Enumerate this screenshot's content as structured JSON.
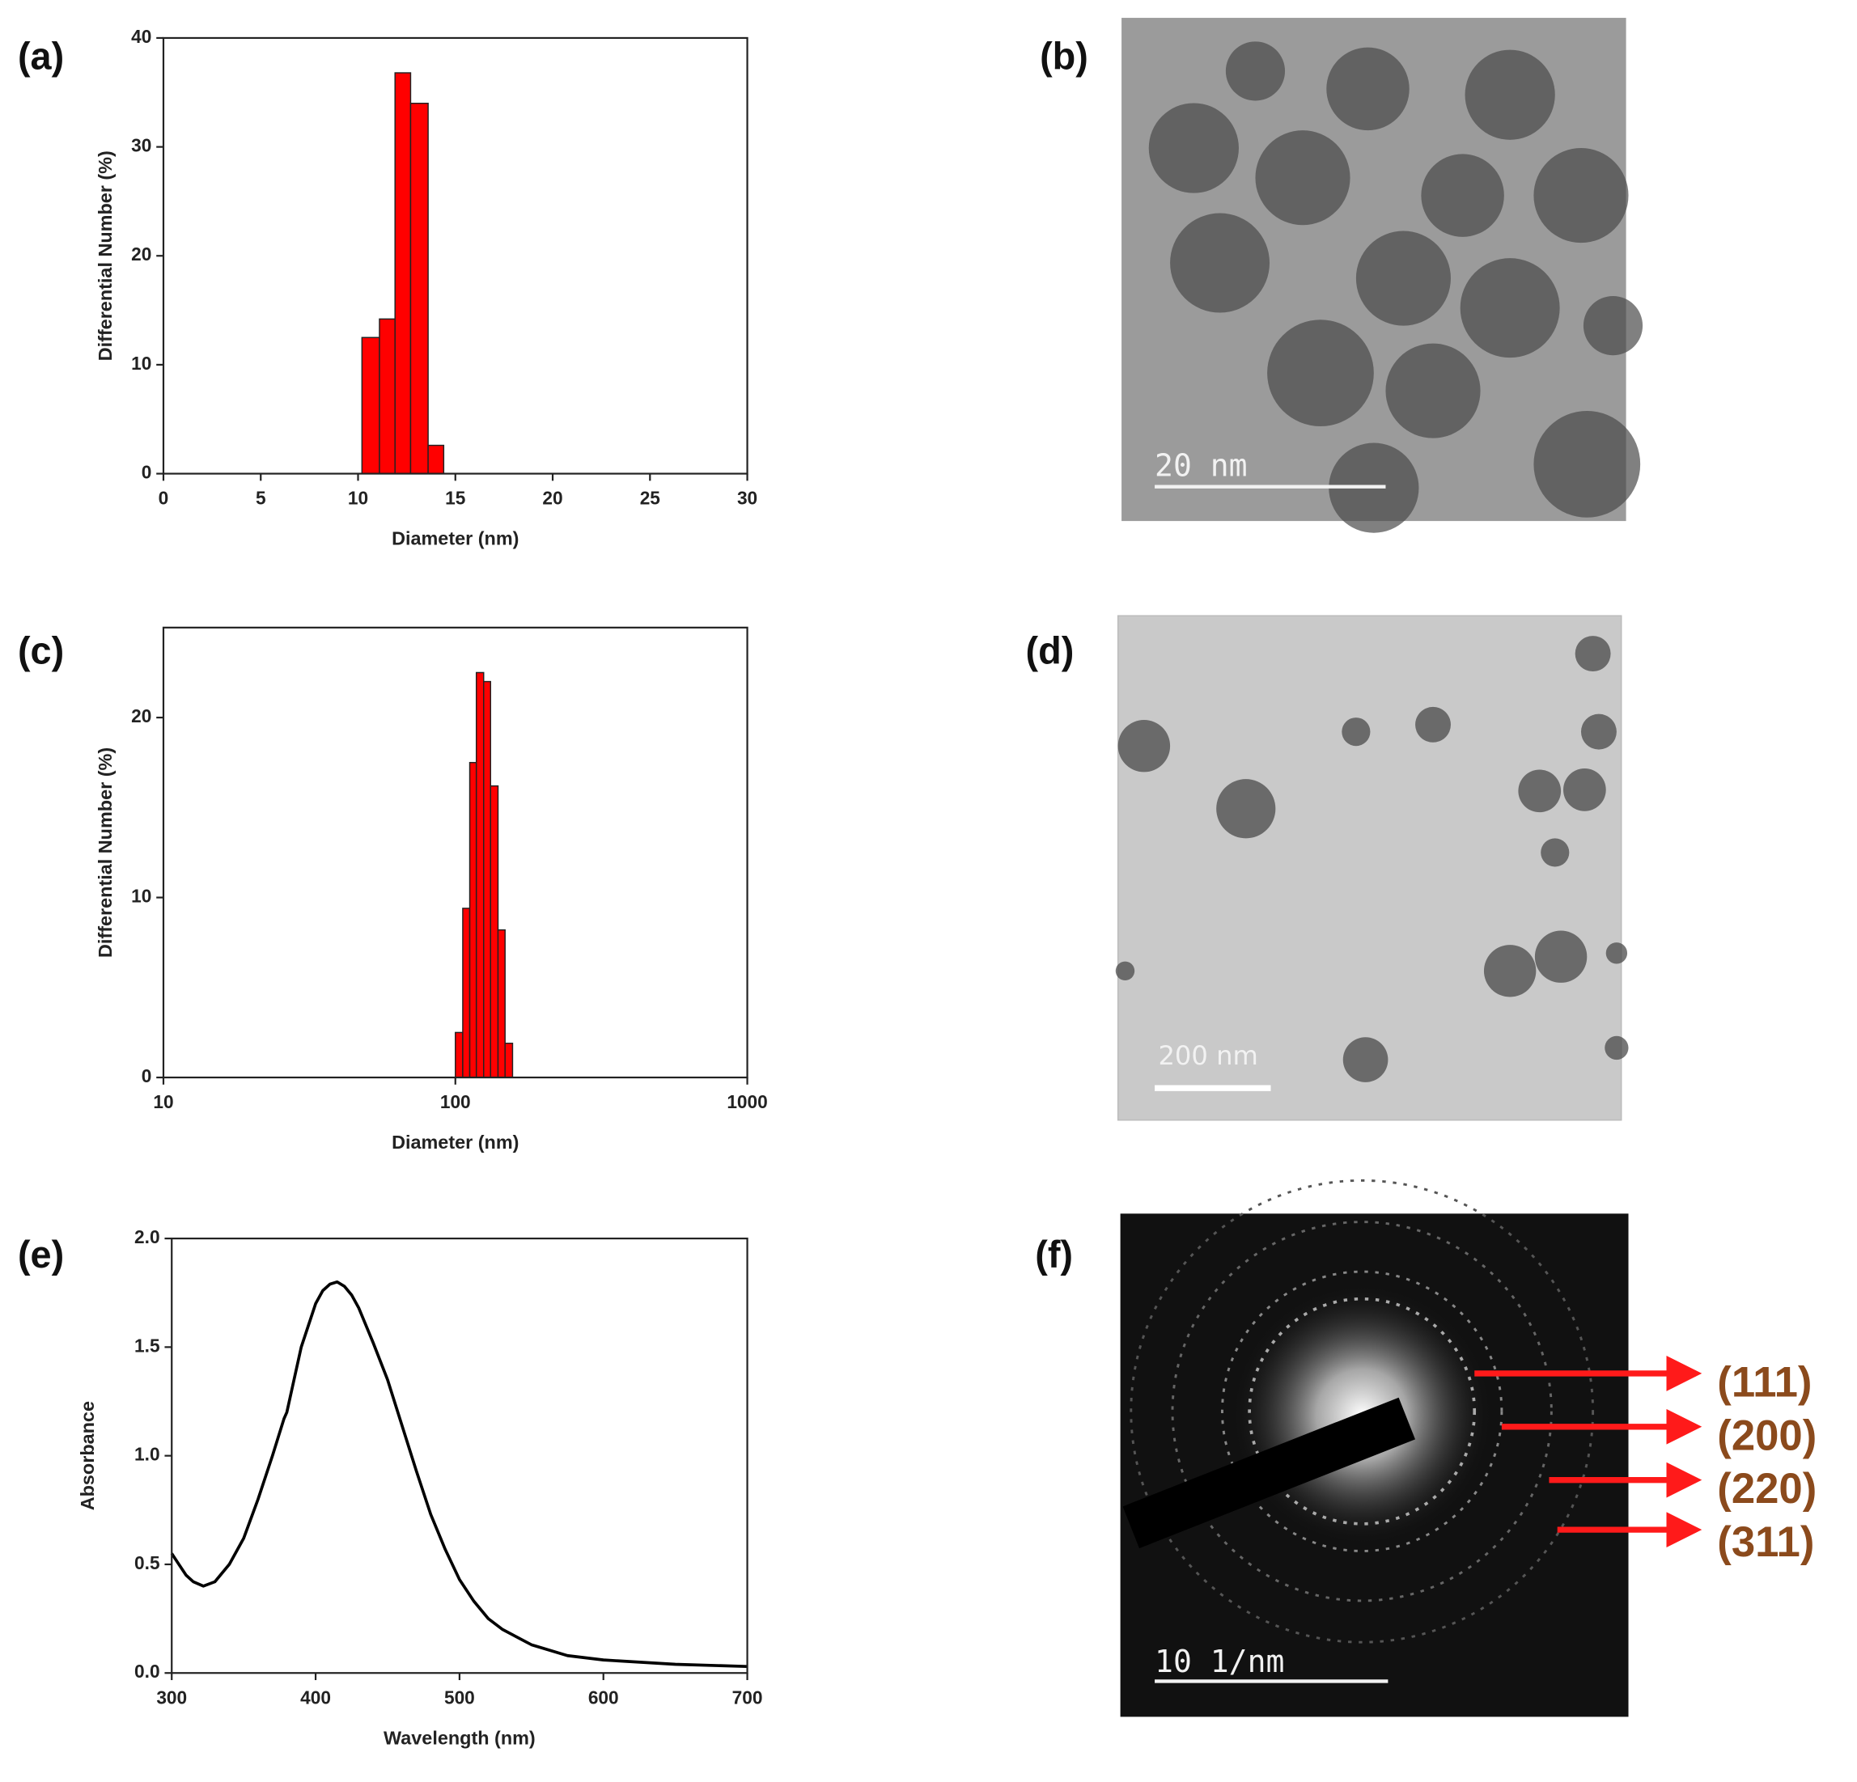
{
  "chart_data": [
    {
      "type": "histogram",
      "label": "(a)",
      "xlabel": "Diameter (nm)",
      "ylabel": "Differential Number (%)",
      "bins": [
        10.2,
        11.1,
        11.9,
        12.7,
        13.6,
        14.4
      ],
      "values": [
        12.5,
        14.2,
        36.8,
        34,
        2.6
      ],
      "color": "#ff0000",
      "xlim": [
        0,
        30
      ],
      "xticks": [
        0,
        5,
        10,
        15,
        20,
        25,
        30
      ],
      "ylim": [
        0,
        40
      ],
      "yticks": [
        0,
        10,
        20,
        30,
        40
      ],
      "log_x": false
    },
    {
      "type": "histogram",
      "label": "(c)",
      "xlabel": "Diameter (nm)",
      "ylabel": "Differential Number (%)",
      "bins": [
        100,
        106,
        112,
        118,
        125,
        132,
        140,
        148,
        157
      ],
      "values": [
        2.5,
        9.4,
        17.5,
        22.5,
        22,
        16.2,
        8.2,
        1.9
      ],
      "color": "#ff0000",
      "xlim": [
        10,
        1000
      ],
      "xticks": [
        10,
        100,
        1000
      ],
      "ylim": [
        0,
        25
      ],
      "yticks": [
        0,
        10,
        20
      ],
      "log_x": true
    },
    {
      "type": "line",
      "label": "(e)",
      "xlabel": "Wavelength (nm)",
      "ylabel": "Absorbance",
      "color": "#000000",
      "x": [
        300,
        305,
        310,
        315,
        322,
        330,
        340,
        350,
        360,
        370,
        378,
        380,
        385,
        390,
        395,
        400,
        405,
        410,
        415,
        420,
        425,
        430,
        440,
        450,
        460,
        470,
        480,
        490,
        500,
        510,
        520,
        530,
        550,
        575,
        600,
        650,
        700
      ],
      "values": [
        0.55,
        0.5,
        0.45,
        0.42,
        0.4,
        0.42,
        0.5,
        0.62,
        0.8,
        1.0,
        1.17,
        1.2,
        1.35,
        1.5,
        1.6,
        1.7,
        1.76,
        1.79,
        1.8,
        1.78,
        1.74,
        1.68,
        1.52,
        1.35,
        1.14,
        0.93,
        0.73,
        0.57,
        0.43,
        0.33,
        0.25,
        0.2,
        0.13,
        0.08,
        0.06,
        0.04,
        0.03
      ],
      "xlim": [
        300,
        700
      ],
      "xticks": [
        300,
        400,
        500,
        600,
        700
      ],
      "ylim": [
        0,
        2
      ],
      "yticks": [
        {
          "value": 0,
          "label": "0.0"
        },
        0.5,
        {
          "value": 1,
          "label": "1.0"
        },
        1.5,
        {
          "value": 2,
          "label": "2.0"
        }
      ],
      "log_x": false
    }
  ],
  "images": [
    {
      "label": "(b)",
      "scale_bar": "20 nm"
    },
    {
      "label": "(d)",
      "scale_bar": "200 nm"
    },
    {
      "label": "(f)",
      "scale_bar": "10 1/nm",
      "annotations": [
        "(111)",
        "(200)",
        "(220)",
        "(311)"
      ]
    }
  ]
}
